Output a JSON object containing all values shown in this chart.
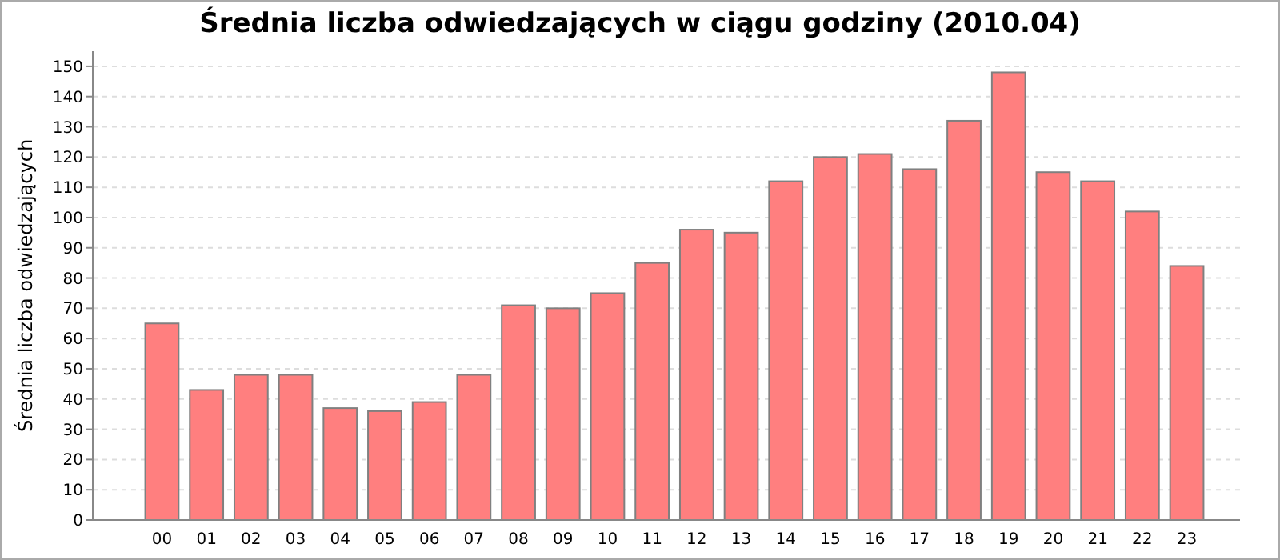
{
  "chart_data": {
    "type": "bar",
    "title": "Średnia liczba odwiedzających w ciągu godziny (2010.04)",
    "ylabel": "Średnia liczba odwiedzających",
    "categories": [
      "00",
      "01",
      "02",
      "03",
      "04",
      "05",
      "06",
      "07",
      "08",
      "09",
      "10",
      "11",
      "12",
      "13",
      "14",
      "15",
      "16",
      "17",
      "18",
      "19",
      "20",
      "21",
      "22",
      "23"
    ],
    "values": [
      65,
      43,
      48,
      48,
      37,
      36,
      39,
      48,
      71,
      70,
      75,
      85,
      96,
      95,
      112,
      120,
      121,
      116,
      132,
      148,
      115,
      112,
      102,
      84
    ],
    "color": "#ff7f7f",
    "ylim": [
      0,
      155
    ],
    "yticks": [
      0,
      10,
      20,
      30,
      40,
      50,
      60,
      70,
      80,
      90,
      100,
      110,
      120,
      130,
      140,
      150
    ],
    "grid": "y"
  }
}
